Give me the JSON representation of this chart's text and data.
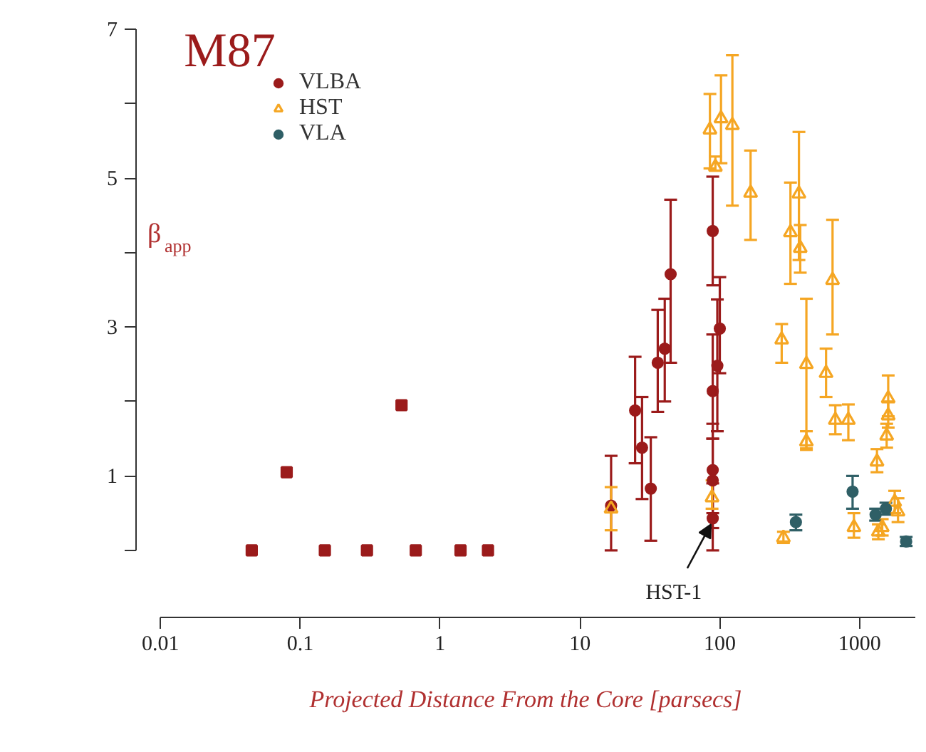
{
  "chart_data": {
    "type": "scatter",
    "title": "M87",
    "xlabel": "Projected Distance From the Core [parsecs]",
    "ylabel": "β$_{app}$",
    "log": "x",
    "xlim": [
      0.0067,
      2500
    ],
    "xticks": [
      0.01,
      0.1,
      1,
      10,
      100,
      1000
    ],
    "ylim": [
      -0.9,
      7
    ],
    "yticks": [
      {
        "value": 0,
        "label": null
      },
      1,
      {
        "value": 2,
        "label": null
      },
      3,
      {
        "value": 4,
        "label": null
      },
      5,
      {
        "value": 6,
        "label": null
      },
      7
    ],
    "grid": false,
    "legend": "top left",
    "annotations": [
      {
        "text": "HST-1",
        "x": 89,
        "y": 0.43
      }
    ],
    "series": [
      {
        "name": "VLBA",
        "color": "#9b1b1b",
        "marker": "circle",
        "x": [
          16.7,
          24.8,
          27.8,
          32.1,
          36,
          40.4,
          44.5,
          89,
          100,
          96,
          89,
          89,
          89,
          89
        ],
        "values": [
          0.6,
          1.88,
          1.38,
          0.83,
          2.52,
          2.71,
          3.71,
          4.29,
          2.98,
          2.48,
          2.14,
          1.08,
          0.94,
          0.43
        ],
        "errors": [
          [
            0.0,
            1.27
          ],
          [
            1.17,
            2.6
          ],
          [
            0.69,
            2.06
          ],
          [
            0.13,
            1.52
          ],
          [
            1.86,
            3.23
          ],
          [
            2.0,
            3.38
          ],
          [
            2.52,
            4.71
          ],
          [
            3.56,
            5.02
          ],
          [
            2.38,
            3.67
          ],
          [
            1.6,
            3.37
          ],
          [
            1.5,
            2.9
          ],
          [
            0.5,
            1.7
          ],
          [
            0.3,
            1.5
          ],
          [
            0.0,
            0.9
          ]
        ]
      },
      {
        "color": "#9b1b1b",
        "marker": "square",
        "x": [
          0.045,
          0.08,
          0.15,
          0.3,
          0.53,
          0.67,
          1.4,
          2.2
        ],
        "values": [
          0,
          1.05,
          0,
          0,
          1.95,
          0,
          0,
          0
        ]
      },
      {
        "name": "HST",
        "color": "#f5a623",
        "marker": "triangle",
        "x": [
          16.7,
          85,
          102,
          123,
          93,
          88,
          166,
          320,
          368,
          376,
          277,
          640,
          416,
          416,
          575,
          670,
          830,
          1600,
          1600,
          1560,
          1330,
          285,
          910,
          1360,
          1450,
          1880,
          1780
        ],
        "values": [
          0.56,
          5.65,
          5.8,
          5.71,
          5.15,
          0.71,
          4.8,
          4.27,
          4.79,
          4.06,
          2.83,
          3.63,
          2.5,
          1.46,
          2.38,
          1.75,
          1.75,
          2.04,
          1.81,
          1.54,
          1.19,
          0.17,
          0.31,
          0.25,
          0.31,
          0.52,
          0.65
        ],
        "errors": [
          [
            0.27,
            0.85
          ],
          [
            5.13,
            6.13
          ],
          [
            5.2,
            6.38
          ],
          [
            4.63,
            6.65
          ],
          [
            5.1,
            5.29
          ],
          [
            0.56,
            0.94
          ],
          [
            4.17,
            5.37
          ],
          [
            3.58,
            4.94
          ],
          [
            3.9,
            5.62
          ],
          [
            3.73,
            4.37
          ],
          [
            2.52,
            3.04
          ],
          [
            2.9,
            4.44
          ],
          [
            1.37,
            3.38
          ],
          [
            1.35,
            1.6
          ],
          [
            2.06,
            2.71
          ],
          [
            1.56,
            1.95
          ],
          [
            1.48,
            1.96
          ],
          [
            1.8,
            2.35
          ],
          [
            1.65,
            2.0
          ],
          [
            1.38,
            1.7
          ],
          [
            1.05,
            1.36
          ],
          [
            0.1,
            0.25
          ],
          [
            0.17,
            0.5
          ],
          [
            0.15,
            0.35
          ],
          [
            0.2,
            0.42
          ],
          [
            0.38,
            0.7
          ],
          [
            0.5,
            0.8
          ]
        ]
      },
      {
        "name": "VLA",
        "color": "#2f5f66",
        "marker": "circle",
        "x": [
          350,
          890,
          1300,
          1540,
          2150
        ],
        "values": [
          0.38,
          0.79,
          0.48,
          0.56,
          0.12
        ],
        "errors": [
          [
            0.27,
            0.48
          ],
          [
            0.56,
            1.0
          ],
          [
            0.4,
            0.56
          ],
          [
            0.48,
            0.64
          ],
          [
            0.06,
            0.18
          ]
        ]
      }
    ]
  }
}
